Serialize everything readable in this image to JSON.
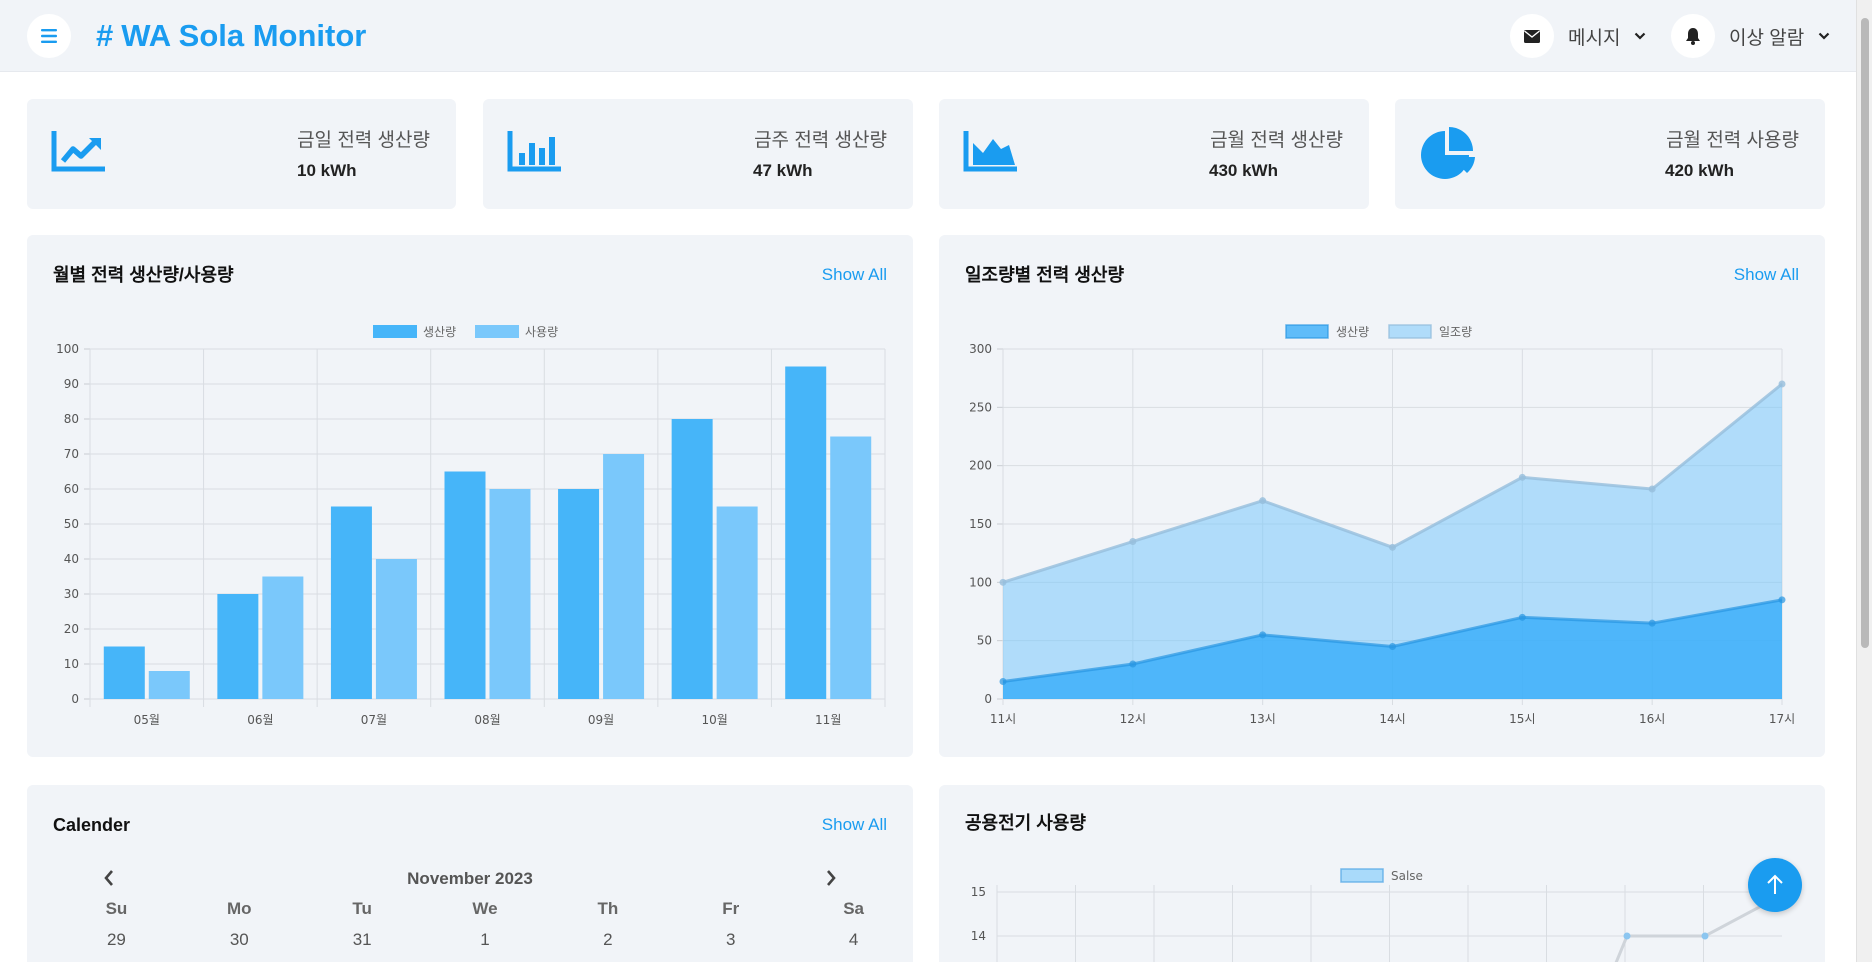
{
  "header": {
    "brand_symbol": "#",
    "title": "WA Sola Monitor",
    "messages_label": "메시지",
    "alerts_label": "이상 알람"
  },
  "stats": [
    {
      "title": "금일 전력 생산량",
      "value": "10 kWh",
      "icon": "chart-line-up-icon"
    },
    {
      "title": "금주 전력 생산량",
      "value": "47 kWh",
      "icon": "chart-bar-icon"
    },
    {
      "title": "금월 전력 생산량",
      "value": "430 kWh",
      "icon": "chart-area-icon"
    },
    {
      "title": "금월 전력 사용량",
      "value": "420 kWh",
      "icon": "chart-pie-icon"
    }
  ],
  "monthly_card": {
    "title": "월별 전력 생산량/사용량",
    "show_all": "Show All"
  },
  "irradiance_card": {
    "title": "일조량별 전력 생산량",
    "show_all": "Show All"
  },
  "calendar_card": {
    "title": "Calender",
    "show_all": "Show All",
    "month_label": "November 2023",
    "weekdays": [
      "Su",
      "Mo",
      "Tu",
      "We",
      "Th",
      "Fr",
      "Sa"
    ],
    "first_row": [
      "29",
      "30",
      "31",
      "1",
      "2",
      "3",
      "4"
    ]
  },
  "public_card": {
    "title": "공용전기 사용량"
  },
  "colors": {
    "accent": "#1a9cf0",
    "bar1": "#46b5f9",
    "bar2": "#7ac8fb"
  },
  "chart_data": [
    {
      "type": "bar",
      "categories": [
        "05월",
        "06월",
        "07월",
        "08월",
        "09월",
        "10월",
        "11월"
      ],
      "series": [
        {
          "name": "생산량",
          "values": [
            15,
            30,
            55,
            65,
            60,
            80,
            95
          ]
        },
        {
          "name": "사용량",
          "values": [
            8,
            35,
            40,
            60,
            70,
            55,
            75
          ]
        }
      ],
      "ylim": [
        0,
        100
      ],
      "yticks": [
        0,
        10,
        20,
        30,
        40,
        50,
        60,
        70,
        80,
        90,
        100
      ],
      "grid": true,
      "legend": "top-center"
    },
    {
      "type": "area",
      "categories": [
        "11시",
        "12시",
        "13시",
        "14시",
        "15시",
        "16시",
        "17시"
      ],
      "series": [
        {
          "name": "생산량",
          "values": [
            15,
            30,
            55,
            45,
            70,
            65,
            85
          ]
        },
        {
          "name": "일조량",
          "values": [
            100,
            135,
            170,
            130,
            190,
            180,
            270
          ]
        }
      ],
      "ylim": [
        0,
        300
      ],
      "yticks": [
        0,
        50,
        100,
        150,
        200,
        250,
        300
      ],
      "grid": true,
      "legend": "top-center"
    },
    {
      "type": "line",
      "series": [
        {
          "name": "Salse"
        }
      ],
      "yticks_visible": [
        15,
        14
      ],
      "legend": "top-center"
    }
  ]
}
